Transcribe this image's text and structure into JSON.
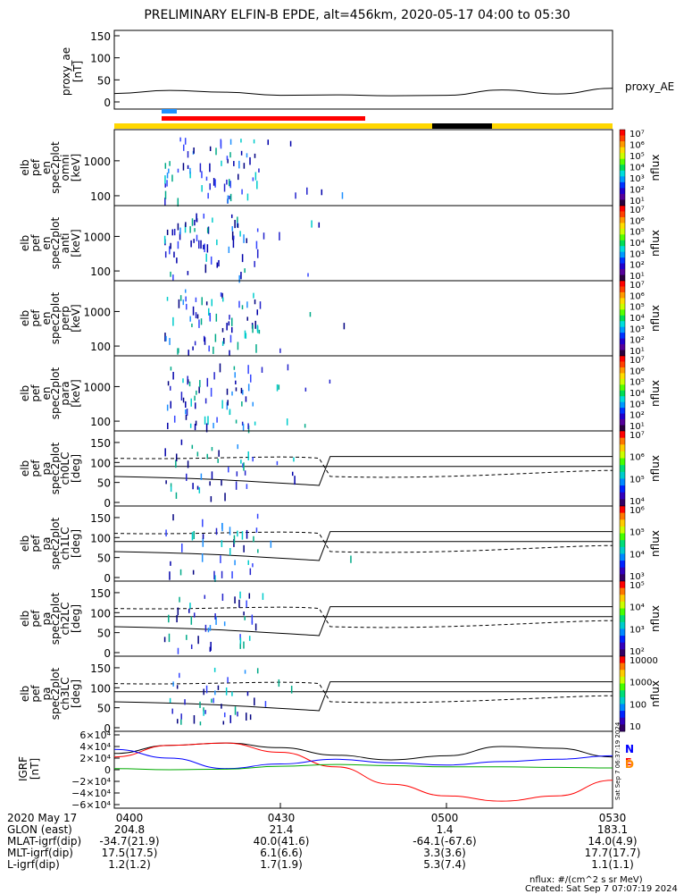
{
  "title": "PRELIMINARY ELFIN-B EPDE, alt=456km, 2020-05-17 04:00 to 05:30",
  "colors": {
    "red": "#ff0000",
    "blue": "#0000ff",
    "green": "#00aa00",
    "black": "#000000",
    "yellow": "#ffd700",
    "lightblue": "#1e90ff"
  },
  "chart_data": [
    {
      "panel": "proxy_ae",
      "type": "line",
      "ylabel": [
        "proxy_ae",
        "[nT]"
      ],
      "yticks": [
        "150",
        "100",
        "50",
        "0"
      ],
      "ylim": [
        0,
        160
      ],
      "legend": "proxy_AE",
      "x_min": [
        0,
        10,
        20,
        30,
        40,
        50,
        60,
        70,
        80,
        90
      ],
      "y": [
        19,
        26,
        22,
        15,
        16,
        14,
        15,
        27,
        18,
        31
      ]
    },
    {
      "panel": "spec_omni",
      "type": "heatmap",
      "ylabel": [
        "elb",
        "pef",
        "en",
        "spec2plot",
        "omni",
        "[keV]"
      ],
      "yticks": [
        "1000",
        "100"
      ],
      "cbar": {
        "label": "nflux",
        "ticks": [
          "10⁷",
          "10⁶",
          "10⁵",
          "10⁴",
          "10³",
          "10²",
          "10¹"
        ]
      }
    },
    {
      "panel": "spec_anti",
      "type": "heatmap",
      "ylabel": [
        "elb",
        "pef",
        "en",
        "spec2plot",
        "anti",
        "[keV]"
      ],
      "yticks": [
        "1000",
        "100"
      ],
      "cbar": {
        "label": "nflux",
        "ticks": [
          "10⁷",
          "10⁶",
          "10⁵",
          "10⁴",
          "10³",
          "10²",
          "10¹"
        ]
      }
    },
    {
      "panel": "spec_perp",
      "type": "heatmap",
      "ylabel": [
        "elb",
        "pef",
        "en",
        "spec2plot",
        "perp",
        "[keV]"
      ],
      "yticks": [
        "1000",
        "100"
      ],
      "cbar": {
        "label": "nflux",
        "ticks": [
          "10⁷",
          "10⁶",
          "10⁵",
          "10⁴",
          "10³",
          "10²",
          "10¹"
        ]
      }
    },
    {
      "panel": "spec_para",
      "type": "heatmap",
      "ylabel": [
        "elb",
        "pef",
        "en",
        "spec2plot",
        "para",
        "[keV]"
      ],
      "yticks": [
        "1000",
        "100"
      ],
      "cbar": {
        "label": "nflux",
        "ticks": [
          "10⁷",
          "10⁶",
          "10⁵",
          "10⁴",
          "10³",
          "10²",
          "10¹"
        ]
      }
    },
    {
      "panel": "pa_ch0",
      "type": "heatmap",
      "ylabel": [
        "elb",
        "pef",
        "pa",
        "spec2plot",
        "ch0LC",
        "[deg]"
      ],
      "yticks": [
        "150",
        "100",
        "50",
        "0"
      ],
      "cbar": {
        "label": "nflux",
        "ticks": [
          "10⁷",
          "10⁶",
          "10⁵",
          "10⁴"
        ]
      }
    },
    {
      "panel": "pa_ch1",
      "type": "heatmap",
      "ylabel": [
        "elb",
        "pef",
        "pa",
        "spec2plot",
        "ch1LC",
        "[deg]"
      ],
      "yticks": [
        "150",
        "100",
        "50",
        "0"
      ],
      "cbar": {
        "label": "nflux",
        "ticks": [
          "10⁶",
          "10⁵",
          "10⁴",
          "10³"
        ]
      }
    },
    {
      "panel": "pa_ch2",
      "type": "heatmap",
      "ylabel": [
        "elb",
        "pef",
        "pa",
        "spec2plot",
        "ch2LC",
        "[deg]"
      ],
      "yticks": [
        "150",
        "100",
        "50",
        "0"
      ],
      "cbar": {
        "label": "nflux",
        "ticks": [
          "10⁵",
          "10⁴",
          "10³",
          "10²"
        ]
      }
    },
    {
      "panel": "pa_ch3",
      "type": "heatmap",
      "ylabel": [
        "elb",
        "pef",
        "pa",
        "spec2plot",
        "ch3LC",
        "[deg]"
      ],
      "yticks": [
        "150",
        "100",
        "50",
        "0"
      ],
      "cbar": {
        "label": "nflux",
        "ticks": [
          "10000",
          "1000",
          "100",
          "10"
        ]
      }
    },
    {
      "panel": "igrf",
      "type": "line",
      "ylabel": [
        "IGRF",
        "[nT]"
      ],
      "yticks": [
        "6×10⁴",
        "4×10⁴",
        "2×10⁴",
        "0",
        "−2×10⁴",
        "−4×10⁴",
        "−6×10⁴"
      ],
      "ylim": [
        -60000,
        60000
      ],
      "legend": [
        "N",
        "E",
        "D"
      ],
      "series": [
        {
          "color": "black",
          "x_min": [
            0,
            10,
            20,
            30,
            40,
            50,
            60,
            70,
            80,
            90
          ],
          "y": [
            28000,
            42000,
            46000,
            38000,
            25000,
            17000,
            24000,
            40000,
            37000,
            22000
          ]
        },
        {
          "color": "red",
          "x_min": [
            0,
            10,
            20,
            30,
            40,
            50,
            60,
            70,
            80,
            90
          ],
          "y": [
            22000,
            42000,
            46000,
            30000,
            5000,
            -25000,
            -45000,
            -54000,
            -45000,
            -18000
          ]
        },
        {
          "color": "blue",
          "x_min": [
            0,
            10,
            20,
            30,
            40,
            50,
            60,
            70,
            80,
            90
          ],
          "y": [
            35000,
            20000,
            2000,
            10000,
            18000,
            12000,
            8000,
            14000,
            18000,
            24000
          ]
        },
        {
          "color": "green",
          "x_min": [
            0,
            10,
            20,
            30,
            40,
            50,
            60,
            70,
            80,
            90
          ],
          "y": [
            2000,
            0,
            1000,
            6000,
            9000,
            7000,
            5000,
            5000,
            4000,
            3000
          ]
        }
      ]
    }
  ],
  "xaxis": {
    "rows": [
      {
        "label": "2020 May 17",
        "values": [
          "0400",
          "0430",
          "0500",
          "0530"
        ]
      },
      {
        "label": "GLON (east)",
        "values": [
          "204.8",
          "21.4",
          "1.4",
          "183.1"
        ]
      },
      {
        "label": "MLAT-igrf(dip)",
        "values": [
          "-34.7(21.9)",
          "40.0(41.6)",
          "-64.1(-67.6)",
          "14.0(4.9)"
        ]
      },
      {
        "label": "MLT-igrf(dip)",
        "values": [
          "17.5(17.5)",
          "6.1(6.6)",
          "3.3(3.6)",
          "17.7(17.7)"
        ]
      },
      {
        "label": "L-igrf(dip)",
        "values": [
          "1.2(1.2)",
          "1.7(1.9)",
          "5.3(7.4)",
          "1.1(1.1)"
        ]
      }
    ]
  },
  "footer": {
    "units": "nflux: #/(cm^2 s sr MeV)",
    "created": "Created: Sat Sep  7 07:07:19 2024"
  },
  "side_stamp": "Sat Sep  7 06:37:19 2024"
}
